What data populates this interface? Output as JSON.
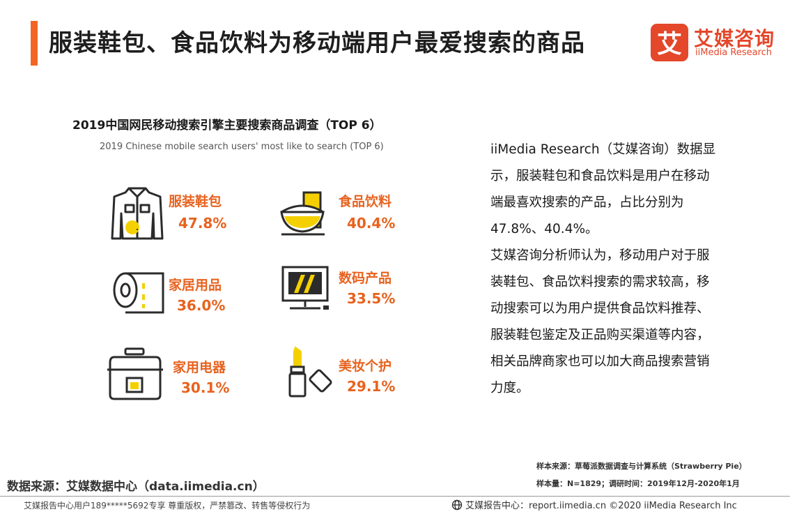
{
  "header": {
    "title": "服装鞋包、食品饮料为移动端用户最爱搜索的商品",
    "accent_color": "#f26522"
  },
  "logo": {
    "glyph": "艾",
    "name_cn": "艾媒咨询",
    "name_en": "iiMedia Research",
    "color": "#e4472a"
  },
  "chart": {
    "title": "2019中国网民移动搜索引擎主要搜索商品调查（TOP 6）",
    "subtitle": "2019 Chinese mobile search users' most like to search (TOP 6)"
  },
  "chart_data": {
    "type": "table",
    "title": "2019中国网民移动搜索引擎主要搜索商品调查（TOP 6）",
    "subtitle": "2019 Chinese mobile search users' most like to search (TOP 6)",
    "categories": [
      "服装鞋包",
      "食品饮料",
      "家居用品",
      "数码产品",
      "家用电器",
      "美妆个护"
    ],
    "values": [
      47.8,
      40.4,
      36.0,
      33.5,
      30.1,
      29.1
    ],
    "value_labels": [
      "47.8%",
      "40.4%",
      "36.0%",
      "33.5%",
      "30.1%",
      "29.1%"
    ],
    "icons": [
      "shirt-icon",
      "food-bowl-icon",
      "paper-roll-icon",
      "monitor-icon",
      "rice-cooker-icon",
      "lipstick-icon"
    ]
  },
  "description": {
    "paragraph1": "iiMedia Research（艾媒咨询）数据显示，服装鞋包和食品饮料是用户在移动端最喜欢搜索的产品，占比分别为47.8%、40.4%。",
    "paragraph2": "艾媒咨询分析师认为，移动用户对于服装鞋包、食品饮料搜索的需求较高，移动搜索可以为用户提供食品饮料推荐、服装鞋包鉴定及正品购买渠道等内容，相关品牌商家也可以加大商品搜索营销力度。"
  },
  "source": {
    "sample_source": "样本来源：草莓派数据调查与计算系统（Strawberry Pie）",
    "sample_size": "样本量：N=1829；调研时间：2019年12月-2020年1月",
    "data_source": "数据来源：艾媒数据中心（data.iimedia.cn）"
  },
  "footer": {
    "copyright_notice": "艾媒报告中心用户189*****5692专享 尊重版权，严禁篡改、转售等侵权行为",
    "right_text": "艾媒报告中心：report.iimedia.cn  ©2020  iiMedia Research  Inc"
  },
  "colors": {
    "orange": "#e8621e",
    "yellow": "#f5d000",
    "icon_dark": "#2b2b2b"
  }
}
